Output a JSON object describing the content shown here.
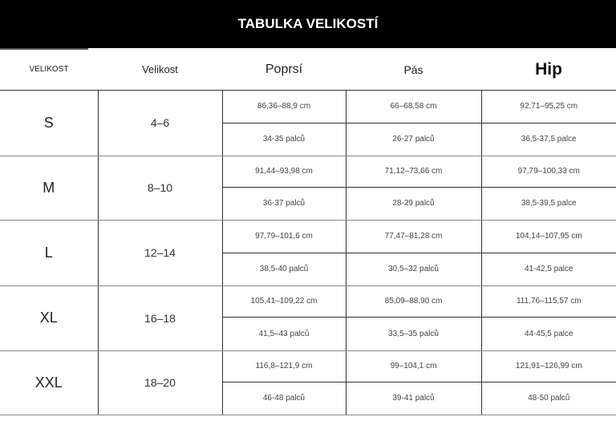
{
  "title": "TABULKA VELIKOSTÍ",
  "headers": [
    "VELIKOST",
    "Velikost",
    "Poprsí",
    "Pás",
    "Hip"
  ],
  "rows": [
    {
      "size": "S",
      "range": "4–6",
      "bust_cm": "86,36–88,9 cm",
      "bust_in": "34-35 palců",
      "waist_cm": "66–68,58 cm",
      "waist_in": "26-27 palců",
      "hip_cm": "92,71–95,25 cm",
      "hip_in": "36,5-37,5 palce"
    },
    {
      "size": "M",
      "range": "8–10",
      "bust_cm": "91,44–93,98 cm",
      "bust_in": "36-37 palců",
      "waist_cm": "71,12–73,66 cm",
      "waist_in": "28-29 palců",
      "hip_cm": "97,79–100,33 cm",
      "hip_in": "38,5-39,5 palce"
    },
    {
      "size": "L",
      "range": "12–14",
      "bust_cm": "97,79–101,6 cm",
      "bust_in": "38,5-40 palců",
      "waist_cm": "77,47–81,28 cm",
      "waist_in": "30,5–32 palců",
      "hip_cm": "104,14–107,95 cm",
      "hip_in": "41-42,5 palce"
    },
    {
      "size": "XL",
      "range": "16–18",
      "bust_cm": "105,41–109,22 cm",
      "bust_in": "41,5–43 palců",
      "waist_cm": "85,09–88,90 cm",
      "waist_in": "33,5–35 palců",
      "hip_cm": "111,76–115,57 cm",
      "hip_in": "44-45,5 palce"
    },
    {
      "size": "XXL",
      "range": "18–20",
      "bust_cm": "116,8–121,9 cm",
      "bust_in": "46-48 palců",
      "waist_cm": "99–104,1 cm",
      "waist_in": "39-41 palců",
      "hip_cm": "121,91–126,99 cm",
      "hip_in": "48-50 palců"
    }
  ]
}
